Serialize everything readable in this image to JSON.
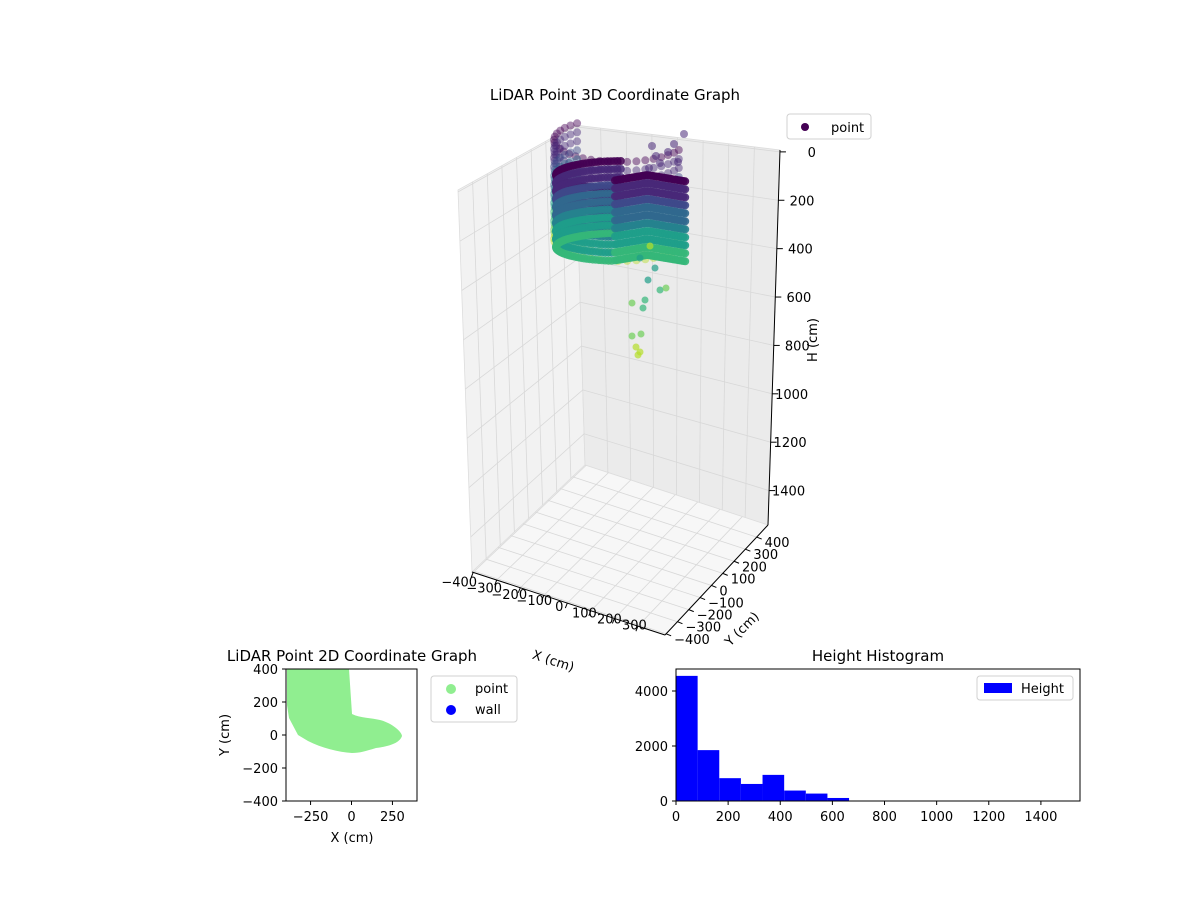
{
  "chart_data": [
    {
      "type": "scatter",
      "projection": "3d",
      "title": "LiDAR Point 3D Coordinate Graph",
      "xlabel": "X (cm)",
      "ylabel": "Y (cm)",
      "zlabel": "H (cm)",
      "x_ticks": [
        "−400",
        "−300",
        "−200",
        "−100",
        "0",
        "100",
        "200",
        "300"
      ],
      "y_ticks": [
        "−400",
        "−300",
        "−200",
        "−100",
        "0",
        "100",
        "200",
        "300",
        "400"
      ],
      "z_ticks": [
        "0",
        "200",
        "400",
        "600",
        "800",
        "1000",
        "1200",
        "1400"
      ],
      "xlim": [
        -400,
        350
      ],
      "ylim": [
        -400,
        400
      ],
      "zlim": [
        0,
        1550
      ],
      "z_axis_inverted": true,
      "colormap": "viridis",
      "grid": true,
      "legend": {
        "position": "top-right",
        "entries": [
          {
            "name": "point",
            "color": "#440154"
          }
        ]
      }
    },
    {
      "type": "scatter",
      "title": "LiDAR Point 2D Coordinate Graph",
      "xlabel": "X (cm)",
      "ylabel": "Y (cm)",
      "x_ticks": [
        "−250",
        "0",
        "250"
      ],
      "y_ticks": [
        "400",
        "200",
        "0",
        "−200",
        "−400"
      ],
      "xlim": [
        -400,
        400
      ],
      "ylim": [
        -400,
        400
      ],
      "series": [
        {
          "name": "point",
          "color": "#90ee90"
        },
        {
          "name": "wall",
          "color": "#0000ff"
        }
      ],
      "legend": {
        "position": "outside-right"
      }
    },
    {
      "type": "bar",
      "subtype": "histogram",
      "title": "Height Histogram",
      "series_name": "Height",
      "color": "#0000ff",
      "bin_edges": [
        0,
        83,
        166,
        249,
        332,
        415,
        498,
        581,
        664
      ],
      "counts": [
        4550,
        1850,
        830,
        620,
        950,
        380,
        270,
        110
      ],
      "x_ticks": [
        "0",
        "200",
        "400",
        "600",
        "800",
        "1000",
        "1200",
        "1400"
      ],
      "y_ticks": [
        "0",
        "2000",
        "4000"
      ],
      "xlim": [
        0,
        1550
      ],
      "ylim": [
        0,
        4800
      ],
      "legend": {
        "position": "top-right"
      }
    }
  ]
}
